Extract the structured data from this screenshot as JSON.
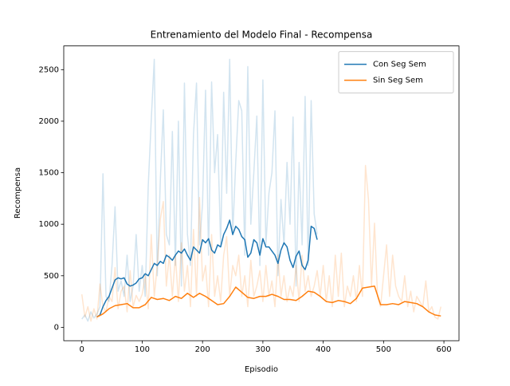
{
  "chart_data": {
    "type": "line",
    "title": "Entrenamiento del Modelo Final - Recompensa",
    "xlabel": "Episodio",
    "ylabel": "Recompensa",
    "xlim": [
      -30,
      625
    ],
    "ylim": [
      -130,
      2730
    ],
    "xticks": [
      0,
      100,
      200,
      300,
      400,
      500,
      600
    ],
    "yticks": [
      0,
      500,
      1000,
      1500,
      2000,
      2500
    ],
    "grid": false,
    "legend": "upper right",
    "series": [
      {
        "color": "#1f77b4",
        "alpha": 0.2,
        "x": [
          0,
          5,
          10,
          15,
          20,
          25,
          30,
          35,
          40,
          45,
          50,
          55,
          60,
          65,
          70,
          75,
          80,
          85,
          90,
          95,
          100,
          105,
          110,
          115,
          120,
          125,
          130,
          135,
          140,
          145,
          150,
          155,
          160,
          165,
          170,
          175,
          180,
          185,
          190,
          195,
          200,
          205,
          210,
          215,
          220,
          225,
          230,
          235,
          240,
          245,
          250,
          255,
          260,
          265,
          270,
          275,
          280,
          285,
          290,
          295,
          300,
          305,
          310,
          315,
          320,
          325,
          330,
          335,
          340,
          345,
          350,
          355,
          360,
          365,
          370,
          375,
          380,
          385,
          390
        ],
        "values": [
          80,
          120,
          60,
          150,
          90,
          130,
          200,
          1490,
          300,
          250,
          600,
          1170,
          350,
          450,
          300,
          700,
          250,
          400,
          900,
          350,
          600,
          300,
          1370,
          2010,
          2600,
          500,
          1420,
          2110,
          900,
          800,
          1900,
          600,
          2000,
          400,
          2370,
          900,
          600,
          1870,
          2370,
          800,
          1200,
          2300,
          700,
          2380,
          1500,
          1870,
          800,
          2280,
          1300,
          2600,
          900,
          1600,
          2200,
          2100,
          700,
          2530,
          1000,
          1500,
          2050,
          600,
          2400,
          800,
          1300,
          1500,
          2100,
          500,
          1240,
          800,
          1600,
          1000,
          2040,
          400,
          1600,
          800,
          2240,
          600,
          2200,
          1100,
          900
        ]
      },
      {
        "color": "#ff7f0e",
        "alpha": 0.2,
        "x": [
          0,
          5,
          10,
          15,
          20,
          25,
          30,
          35,
          40,
          45,
          50,
          55,
          60,
          65,
          70,
          75,
          80,
          85,
          90,
          95,
          100,
          105,
          110,
          115,
          120,
          125,
          130,
          135,
          140,
          145,
          150,
          155,
          160,
          165,
          170,
          175,
          180,
          185,
          190,
          195,
          200,
          205,
          210,
          215,
          220,
          225,
          230,
          235,
          240,
          245,
          250,
          255,
          260,
          265,
          270,
          275,
          280,
          285,
          290,
          295,
          300,
          305,
          310,
          315,
          320,
          325,
          330,
          335,
          340,
          345,
          350,
          355,
          360,
          365,
          370,
          375,
          380,
          385,
          390,
          395,
          400,
          405,
          410,
          415,
          420,
          425,
          430,
          435,
          440,
          445,
          450,
          455,
          460,
          465,
          470,
          475,
          480,
          485,
          490,
          495,
          500,
          505,
          510,
          515,
          520,
          525,
          530,
          535,
          540,
          545,
          550,
          555,
          560,
          565,
          570,
          575,
          580,
          585,
          590,
          595
        ],
        "values": [
          320,
          100,
          200,
          60,
          180,
          80,
          420,
          200,
          150,
          300,
          250,
          580,
          180,
          350,
          400,
          150,
          550,
          200,
          310,
          250,
          320,
          500,
          180,
          900,
          300,
          600,
          1050,
          1220,
          400,
          700,
          300,
          700,
          250,
          820,
          350,
          600,
          200,
          950,
          300,
          1260,
          450,
          600,
          200,
          900,
          300,
          500,
          250,
          700,
          880,
          300,
          600,
          500,
          700,
          300,
          500,
          200,
          650,
          300,
          400,
          550,
          250,
          600,
          300,
          450,
          200,
          700,
          300,
          500,
          250,
          400,
          300,
          600,
          250,
          700,
          350,
          500,
          300,
          400,
          550,
          300,
          600,
          250,
          500,
          200,
          700,
          300,
          720,
          200,
          400,
          300,
          500,
          250,
          600,
          300,
          1570,
          1240,
          400,
          1010,
          300,
          200,
          500,
          800,
          300,
          700,
          400,
          300,
          250,
          500,
          200,
          350,
          150,
          300,
          250,
          200,
          450,
          150,
          200,
          100,
          80,
          200
        ]
      },
      {
        "name": "Con Seg Sem",
        "color": "#1f77b4",
        "x": [
          25,
          30,
          35,
          40,
          45,
          50,
          55,
          60,
          65,
          70,
          75,
          80,
          85,
          90,
          95,
          100,
          105,
          110,
          115,
          120,
          125,
          130,
          135,
          140,
          145,
          150,
          155,
          160,
          165,
          170,
          175,
          180,
          185,
          190,
          195,
          200,
          205,
          210,
          215,
          220,
          225,
          230,
          235,
          240,
          245,
          250,
          255,
          260,
          265,
          270,
          275,
          280,
          285,
          290,
          295,
          300,
          305,
          310,
          315,
          320,
          325,
          330,
          335,
          340,
          345,
          350,
          355,
          360,
          365,
          370,
          375,
          380,
          385,
          390
        ],
        "values": [
          100,
          120,
          200,
          260,
          300,
          380,
          460,
          480,
          470,
          480,
          420,
          400,
          410,
          430,
          470,
          480,
          520,
          500,
          560,
          620,
          600,
          640,
          620,
          700,
          680,
          650,
          700,
          740,
          720,
          760,
          700,
          650,
          780,
          750,
          720,
          850,
          820,
          860,
          750,
          720,
          800,
          780,
          900,
          960,
          1040,
          900,
          980,
          950,
          880,
          850,
          680,
          720,
          850,
          820,
          700,
          860,
          780,
          780,
          740,
          700,
          620,
          750,
          820,
          780,
          650,
          580,
          690,
          740,
          600,
          560,
          650,
          980,
          960,
          850
        ]
      },
      {
        "name": "Sin Seg Sem",
        "color": "#ff7f0e",
        "x": [
          25,
          35,
          45,
          55,
          65,
          75,
          85,
          95,
          105,
          115,
          125,
          135,
          145,
          155,
          165,
          175,
          185,
          195,
          205,
          215,
          225,
          235,
          245,
          255,
          265,
          275,
          285,
          295,
          305,
          315,
          325,
          335,
          345,
          355,
          365,
          375,
          385,
          395,
          405,
          415,
          425,
          435,
          445,
          455,
          465,
          475,
          485,
          495,
          505,
          515,
          525,
          535,
          545,
          555,
          565,
          575,
          585,
          595
        ],
        "values": [
          100,
          130,
          180,
          210,
          220,
          230,
          190,
          190,
          220,
          290,
          270,
          280,
          260,
          300,
          280,
          330,
          290,
          330,
          300,
          260,
          220,
          230,
          300,
          390,
          340,
          290,
          280,
          300,
          300,
          320,
          300,
          270,
          270,
          260,
          300,
          350,
          340,
          300,
          250,
          240,
          260,
          250,
          230,
          280,
          380,
          390,
          400,
          220,
          220,
          230,
          220,
          250,
          240,
          230,
          200,
          150,
          120,
          110
        ]
      }
    ]
  }
}
